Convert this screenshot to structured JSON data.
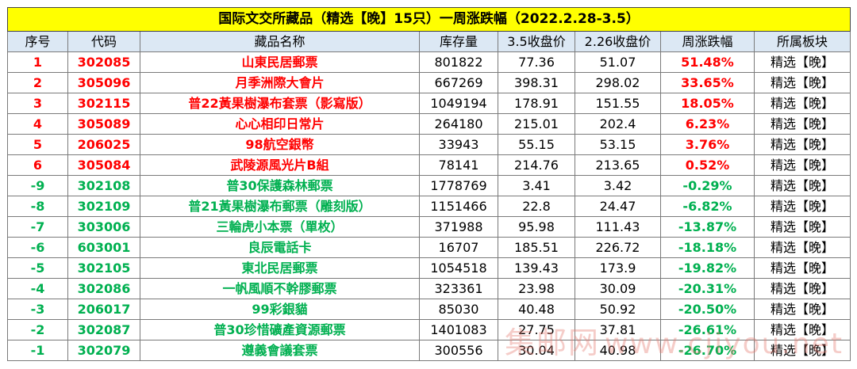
{
  "title": "国际文交所藏品（精选【晚】15只）一周涨跌幅（2022.2.28-3.5）",
  "headers": [
    "序号",
    "代码",
    "藏品名称",
    "库存量",
    "3.5收盘价",
    "2.26收盘价",
    "周涨跌幅",
    "所属板块"
  ],
  "colors": {
    "up": "#ff0000",
    "down": "#00b050",
    "title_bg": "#ffff00",
    "header_bg": "#dce8f4"
  },
  "rows": [
    {
      "no": "1",
      "code": "302085",
      "name": "山東民居郵票",
      "stock": "801822",
      "close_35": "77.36",
      "close_226": "51.07",
      "change": "51.48%",
      "board": "精选【晚】",
      "trend": "up"
    },
    {
      "no": "2",
      "code": "305096",
      "name": "月季洲際大會片",
      "stock": "667269",
      "close_35": "398.31",
      "close_226": "298.02",
      "change": "33.65%",
      "board": "精选【晚】",
      "trend": "up"
    },
    {
      "no": "3",
      "code": "302115",
      "name": "普22黃果樹瀑布套票（影寫版）",
      "stock": "1049194",
      "close_35": "178.91",
      "close_226": "151.55",
      "change": "18.05%",
      "board": "精选【晚】",
      "trend": "up"
    },
    {
      "no": "4",
      "code": "305089",
      "name": "心心相印日常片",
      "stock": "264180",
      "close_35": "215.01",
      "close_226": "202.4",
      "change": "6.23%",
      "board": "精选【晚】",
      "trend": "up"
    },
    {
      "no": "5",
      "code": "206025",
      "name": "98航空銀幣",
      "stock": "33943",
      "close_35": "55.15",
      "close_226": "53.15",
      "change": "3.76%",
      "board": "精选【晚】",
      "trend": "up"
    },
    {
      "no": "6",
      "code": "305084",
      "name": "武陵源風光片B組",
      "stock": "78141",
      "close_35": "214.76",
      "close_226": "213.65",
      "change": "0.52%",
      "board": "精选【晚】",
      "trend": "up"
    },
    {
      "no": "-9",
      "code": "302108",
      "name": "普30保護森林郵票",
      "stock": "1778769",
      "close_35": "3.41",
      "close_226": "3.42",
      "change": "-0.29%",
      "board": "精选【晚】",
      "trend": "down"
    },
    {
      "no": "-8",
      "code": "302109",
      "name": "普21黃果樹瀑布郵票（雕刻版）",
      "stock": "1151466",
      "close_35": "22.8",
      "close_226": "24.47",
      "change": "-6.82%",
      "board": "精选【晚】",
      "trend": "down"
    },
    {
      "no": "-7",
      "code": "303006",
      "name": "三輪虎小本票（單枚）",
      "stock": "371988",
      "close_35": "95.98",
      "close_226": "111.43",
      "change": "-13.87%",
      "board": "精选【晚】",
      "trend": "down"
    },
    {
      "no": "-6",
      "code": "603001",
      "name": "良辰電話卡",
      "stock": "16707",
      "close_35": "185.51",
      "close_226": "226.72",
      "change": "-18.18%",
      "board": "精选【晚】",
      "trend": "down"
    },
    {
      "no": "-5",
      "code": "302105",
      "name": "東北民居郵票",
      "stock": "1054518",
      "close_35": "139.43",
      "close_226": "173.9",
      "change": "-19.82%",
      "board": "精选【晚】",
      "trend": "down"
    },
    {
      "no": "-4",
      "code": "302086",
      "name": "一帆風順不幹膠郵票",
      "stock": "323361",
      "close_35": "23.98",
      "close_226": "30.09",
      "change": "-20.31%",
      "board": "精选【晚】",
      "trend": "down"
    },
    {
      "no": "-3",
      "code": "206017",
      "name": "99彩銀貓",
      "stock": "85030",
      "close_35": "40.48",
      "close_226": "50.92",
      "change": "-20.50%",
      "board": "精选【晚】",
      "trend": "down"
    },
    {
      "no": "-2",
      "code": "302087",
      "name": "普30珍惜礦產資源郵票",
      "stock": "1401083",
      "close_35": "27.75",
      "close_226": "37.81",
      "change": "-26.61%",
      "board": "精选【晚】",
      "trend": "down"
    },
    {
      "no": "-1",
      "code": "302079",
      "name": "遵義會議套票",
      "stock": "300556",
      "close_35": "30.04",
      "close_226": "40.98",
      "change": "-26.70%",
      "board": "精选【晚】",
      "trend": "down"
    }
  ],
  "watermark": {
    "brand": "集邮网",
    "url": "www.cjiyou.net"
  }
}
